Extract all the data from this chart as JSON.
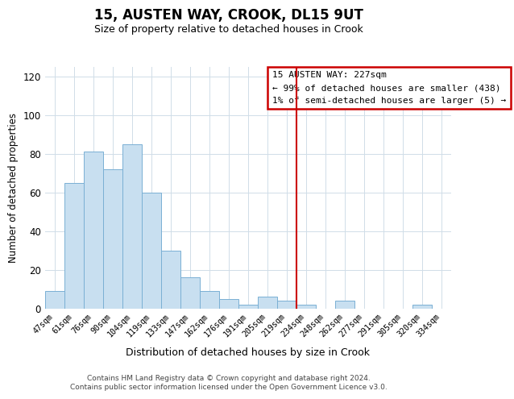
{
  "title": "15, AUSTEN WAY, CROOK, DL15 9UT",
  "subtitle": "Size of property relative to detached houses in Crook",
  "xlabel": "Distribution of detached houses by size in Crook",
  "ylabel": "Number of detached properties",
  "categories": [
    "47sqm",
    "61sqm",
    "76sqm",
    "90sqm",
    "104sqm",
    "119sqm",
    "133sqm",
    "147sqm",
    "162sqm",
    "176sqm",
    "191sqm",
    "205sqm",
    "219sqm",
    "234sqm",
    "248sqm",
    "262sqm",
    "277sqm",
    "291sqm",
    "305sqm",
    "320sqm",
    "334sqm"
  ],
  "values": [
    9,
    65,
    81,
    72,
    85,
    60,
    30,
    16,
    9,
    5,
    2,
    6,
    4,
    2,
    0,
    4,
    0,
    0,
    0,
    2,
    0
  ],
  "bar_color": "#c8dff0",
  "bar_edge_color": "#7ab0d4",
  "vline_color": "#cc0000",
  "annotation_title": "15 AUSTEN WAY: 227sqm",
  "annotation_line1": "← 99% of detached houses are smaller (438)",
  "annotation_line2": "1% of semi-detached houses are larger (5) →",
  "annotation_box_color": "#ffffff",
  "annotation_box_edge_color": "#cc0000",
  "ylim": [
    0,
    125
  ],
  "yticks": [
    0,
    20,
    40,
    60,
    80,
    100,
    120
  ],
  "footer1": "Contains HM Land Registry data © Crown copyright and database right 2024.",
  "footer2": "Contains public sector information licensed under the Open Government Licence v3.0.",
  "background_color": "#ffffff",
  "grid_color": "#d0dde8"
}
